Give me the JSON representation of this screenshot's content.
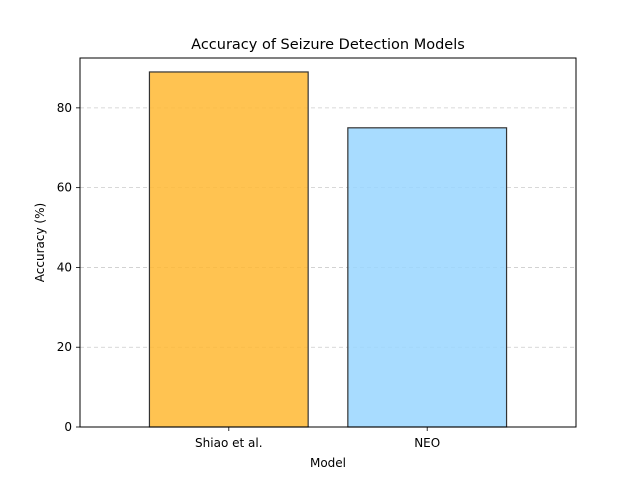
{
  "chart_data": {
    "type": "bar",
    "title": "Accuracy of Seizure Detection Models",
    "xlabel": "Model",
    "ylabel": "Accuracy (%)",
    "categories": [
      "Shiao et al.",
      "NEO"
    ],
    "values": [
      89,
      75
    ],
    "ylim": [
      0,
      92.5
    ],
    "yticks": [
      0,
      20,
      40,
      60,
      80
    ],
    "grid": "y, dashed",
    "colors": [
      "#FFB833",
      "#99D6FF"
    ],
    "bar_alpha": 0.85,
    "edge_color": "#333333"
  }
}
